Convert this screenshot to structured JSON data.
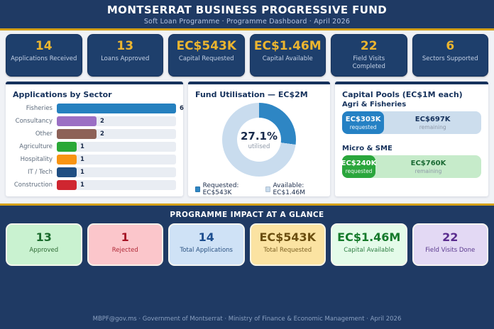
{
  "header": {
    "title": "MONTSERRAT BUSINESS PROGRESSIVE FUND",
    "subtitle": "Soft Loan Programme · Programme Dashboard · April 2026"
  },
  "colors": {
    "navy": "#1f3a64",
    "gold": "#d3a017",
    "kpi_gold": "#ecb52f"
  },
  "kpis": [
    {
      "value": "14",
      "label": "Applications Received"
    },
    {
      "value": "13",
      "label": "Loans Approved"
    },
    {
      "value": "EC$543K",
      "label": "Capital Requested"
    },
    {
      "value": "EC$1.46M",
      "label": "Capital Available"
    },
    {
      "value": "22",
      "label": "Field Visits Completed"
    },
    {
      "value": "6",
      "label": "Sectors Supported"
    }
  ],
  "panels": {
    "sector": {
      "title": "Applications by Sector",
      "rows": [
        {
          "label": "Fisheries",
          "value": "6",
          "width": "100%",
          "color": "#2580bf"
        },
        {
          "label": "Consultancy",
          "value": "2",
          "width": "33.3%",
          "color": "#9b6fc4"
        },
        {
          "label": "Other",
          "value": "2",
          "width": "33.3%",
          "color": "#8d6157"
        },
        {
          "label": "Agriculture",
          "value": "1",
          "width": "16.7%",
          "color": "#2aa836"
        },
        {
          "label": "Hospitality",
          "value": "1",
          "width": "16.7%",
          "color": "#f89412"
        },
        {
          "label": "IT / Tech",
          "value": "1",
          "width": "16.7%",
          "color": "#1f4e82"
        },
        {
          "label": "Construction",
          "value": "1",
          "width": "16.7%",
          "color": "#cf2630"
        }
      ]
    },
    "fund": {
      "title": "Fund Utilisation — EC$2M",
      "pct": "27.1%",
      "pct_label": "utilised",
      "sweep": "97.6deg",
      "requested_color": "#2e86c4",
      "available_color": "#c9dcee",
      "legend_requested": "Requested: EC$543K",
      "legend_available": "Available: EC$1.46M"
    },
    "pools": {
      "title": "Capital Pools (EC$1M each)",
      "items": [
        {
          "name": "Agri & Fisheries",
          "requested_value": "EC$303K",
          "requested_label": "requested",
          "requested_width": "30.3%",
          "seg_color": "#2581c4",
          "track_color": "#ccdded",
          "remaining_value": "EC$697K",
          "remaining_label": "remaining",
          "remaining_color": "#16325c"
        },
        {
          "name": "Micro & SME",
          "requested_value": "EC$240K",
          "requested_label": "requested",
          "requested_width": "24%",
          "seg_color": "#2aa63c",
          "track_color": "#c6ebca",
          "remaining_value": "EC$760K",
          "remaining_label": "remaining",
          "remaining_color": "#1c6b35"
        }
      ]
    }
  },
  "impact": {
    "title": "PROGRAMME IMPACT AT A GLANCE",
    "cards": [
      {
        "value": "13",
        "label": "Approved",
        "bg": "#c9f2d0",
        "value_color": "#1b6b2d",
        "label_color": "#2f6b35"
      },
      {
        "value": "1",
        "label": "Rejected",
        "bg": "#fbc6cb",
        "value_color": "#a51224",
        "label_color": "#b02a38"
      },
      {
        "value": "14",
        "label": "Total Applications",
        "bg": "#cfe2f6",
        "value_color": "#1d4e8f",
        "label_color": "#2a5180"
      },
      {
        "value": "EC$543K",
        "label": "Total Requested",
        "bg": "#fbe3a2",
        "value_color": "#6b4e10",
        "label_color": "#7d6224"
      },
      {
        "value": "EC$1.46M",
        "label": "Capital Available",
        "bg": "#e4fbe9",
        "value_color": "#157a2b",
        "label_color": "#2e7d42"
      },
      {
        "value": "22",
        "label": "Field Visits Done",
        "bg": "#e3d9f4",
        "value_color": "#5a2c8e",
        "label_color": "#5b3a8e"
      }
    ]
  },
  "footer": {
    "text": "MBPF@gov.ms · Government of Montserrat · Ministry of Finance & Economic Management · April 2026"
  },
  "chart_data": [
    {
      "type": "bar",
      "title": "Applications by Sector",
      "categories": [
        "Fisheries",
        "Consultancy",
        "Other",
        "Agriculture",
        "Hospitality",
        "IT / Tech",
        "Construction"
      ],
      "values": [
        6,
        2,
        2,
        1,
        1,
        1,
        1
      ],
      "orientation": "horizontal",
      "xlim": [
        0,
        6
      ]
    },
    {
      "type": "pie",
      "title": "Fund Utilisation — EC$2M",
      "labels": [
        "Requested",
        "Available"
      ],
      "values": [
        543,
        1460
      ],
      "units": "EC$K",
      "center_text": "27.1% utilised",
      "donut": true
    },
    {
      "type": "bar",
      "title": "Capital Pools (EC$1M each)",
      "series": [
        {
          "name": "Agri & Fisheries",
          "requested": 303,
          "remaining": 697
        },
        {
          "name": "Micro & SME",
          "requested": 240,
          "remaining": 760
        }
      ],
      "units": "EC$K",
      "total_per_pool": 1000
    }
  ]
}
